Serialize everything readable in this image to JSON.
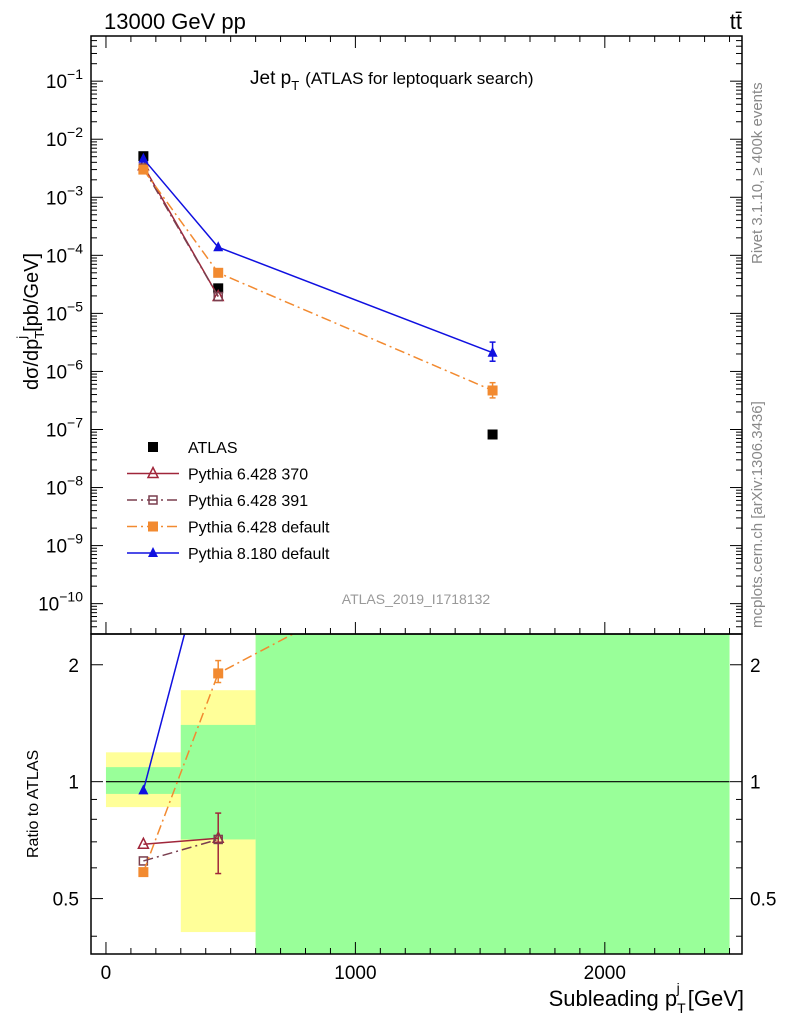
{
  "header": {
    "left": "13000 GeV pp",
    "right": "tt̄"
  },
  "side_texts": {
    "rivet": "Rivet 3.1.10, ≥ 400k events",
    "mcplots": "mcplots.cern.ch [arXiv:1306.3436]"
  },
  "analysis_id": "ATLAS_2019_I1718132",
  "chart_data": [
    {
      "type": "line",
      "title": "Jet p_T (ATLAS for leptoquark search)",
      "title_main": "Jet p",
      "title_sub": "T",
      "title_tail": "(ATLAS for leptoquark search)",
      "ylabel": "dσ/dp_T^j [pb/GeV]",
      "yscale": "log",
      "ylim": [
        3e-11,
        0.6
      ],
      "xlim": [
        -60,
        2550
      ],
      "ytick_exponents": [
        -10,
        -9,
        -8,
        -7,
        -6,
        -5,
        -4,
        -3,
        -2,
        -1
      ],
      "legend_position": "bottom-left",
      "series": [
        {
          "name": "ATLAS",
          "color": "#000000",
          "marker": "square-filled",
          "x": [
            150,
            450,
            1550
          ],
          "y": [
            0.0051,
            2.7e-05,
            8.2e-08
          ]
        },
        {
          "name": "Pythia 6.428 370",
          "color": "#a0263a",
          "marker": "triangle-open",
          "line": "solid",
          "x": [
            150,
            450
          ],
          "y": [
            0.0035,
            1.95e-05
          ]
        },
        {
          "name": "Pythia 6.428 391",
          "color": "#7a3f4f",
          "marker": "square-open",
          "line": "dashdot",
          "x": [
            150,
            450
          ],
          "y": [
            0.0032,
            1.95e-05
          ]
        },
        {
          "name": "Pythia 6.428 default",
          "color": "#f28a30",
          "marker": "square-filled",
          "line": "dashdot",
          "x": [
            150,
            450,
            1550
          ],
          "y": [
            0.003,
            5e-05,
            4.7e-07
          ],
          "yerr": [
            null,
            null,
            [
              3.5e-07,
              6.4e-07
            ]
          ]
        },
        {
          "name": "Pythia 8.180 default",
          "color": "#1010e0",
          "marker": "triangle-filled",
          "line": "solid",
          "x": [
            150,
            450,
            1550
          ],
          "y": [
            0.0046,
            0.000138,
            2.1e-06
          ],
          "yerr": [
            null,
            null,
            [
              1.5e-06,
              3.2e-06
            ]
          ]
        }
      ]
    },
    {
      "type": "line",
      "ylabel": "Ratio to ATLAS",
      "xlabel": "Subleading p_T^j [GeV]",
      "xlabel_main": "Subleading p",
      "xlabel_sub": "T",
      "xlabel_tail": "[GeV]",
      "xlim": [
        -60,
        2550
      ],
      "ylim": [
        0.36,
        2.4
      ],
      "yscale": "log",
      "xticks": [
        0,
        1000,
        2000
      ],
      "yticks": [
        0.5,
        1,
        2
      ],
      "bands": [
        {
          "x": [
            0,
            300
          ],
          "green": [
            0.93,
            1.09
          ],
          "yellow": [
            0.86,
            1.19
          ]
        },
        {
          "x": [
            300,
            600
          ],
          "green": [
            0.71,
            1.4
          ],
          "yellow": [
            0.41,
            1.72
          ]
        },
        {
          "x": [
            600,
            2500
          ],
          "green": [
            0.36,
            2.4
          ],
          "yellow": [
            0.36,
            2.4
          ]
        }
      ],
      "series": [
        {
          "name": "Pythia 6.428 370",
          "x": [
            150,
            450
          ],
          "y": [
            0.69,
            0.715
          ],
          "yerr": [
            null,
            [
              0.58,
              0.83
            ]
          ]
        },
        {
          "name": "Pythia 6.428 391",
          "x": [
            150,
            450
          ],
          "y": [
            0.625,
            0.71
          ]
        },
        {
          "name": "Pythia 6.428 default",
          "x": [
            150,
            450,
            750
          ],
          "y": [
            0.585,
            1.9,
            2.4
          ],
          "yerr": [
            null,
            [
              1.8,
              2.05
            ],
            null
          ]
        },
        {
          "name": "Pythia 8.180 default",
          "x": [
            150,
            315
          ],
          "y": [
            0.95,
            2.4
          ]
        }
      ]
    }
  ]
}
